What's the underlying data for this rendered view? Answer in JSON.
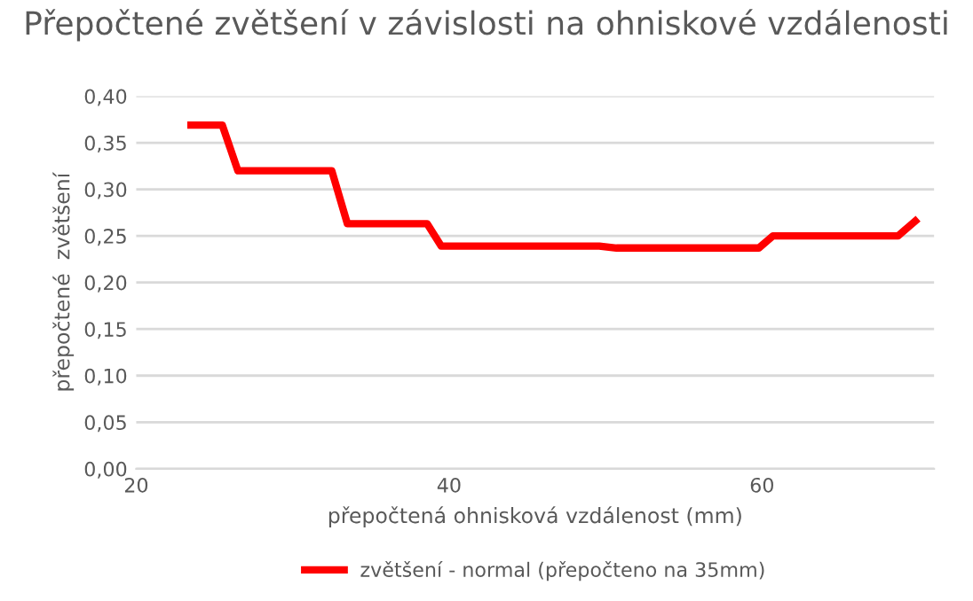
{
  "chart_data": {
    "type": "line",
    "title": "Přepočtené zvětšení v závislosti na ohniskové vzdálenosti",
    "xlabel": "přepočtená ohnisková vzdálenost (mm)",
    "ylabel": "přepočtené  zvětšení",
    "series": [
      {
        "name": "zvětšení - normal (přepočteno na 35mm)",
        "color": "#ff0000",
        "x": [
          23.5,
          25.5,
          26.5,
          32.5,
          33.5,
          38.6,
          39.5,
          49.6,
          50.7,
          59.8,
          60.7,
          68.7,
          69.8
        ],
        "values": [
          0.369,
          0.369,
          0.32,
          0.32,
          0.263,
          0.263,
          0.239,
          0.239,
          0.237,
          0.237,
          0.25,
          0.25,
          0.266
        ]
      }
    ],
    "xlim": [
      20,
      71
    ],
    "xticks": [
      20,
      40,
      60
    ],
    "ylim": [
      0,
      0.4
    ],
    "yticks": [
      {
        "value": 0,
        "label": "0,00"
      },
      {
        "value": 0.05,
        "label": "0,05"
      },
      {
        "value": 0.1,
        "label": "0,10"
      },
      {
        "value": 0.15,
        "label": "0,15"
      },
      {
        "value": 0.2,
        "label": "0,20"
      },
      {
        "value": 0.25,
        "label": "0,25"
      },
      {
        "value": 0.3,
        "label": "0,30"
      },
      {
        "value": 0.35,
        "label": "0,35"
      },
      {
        "value": 0.4,
        "label": "0,40"
      }
    ],
    "grid": "y",
    "legend": "bottom",
    "marker": "none",
    "line_style": "solid"
  }
}
